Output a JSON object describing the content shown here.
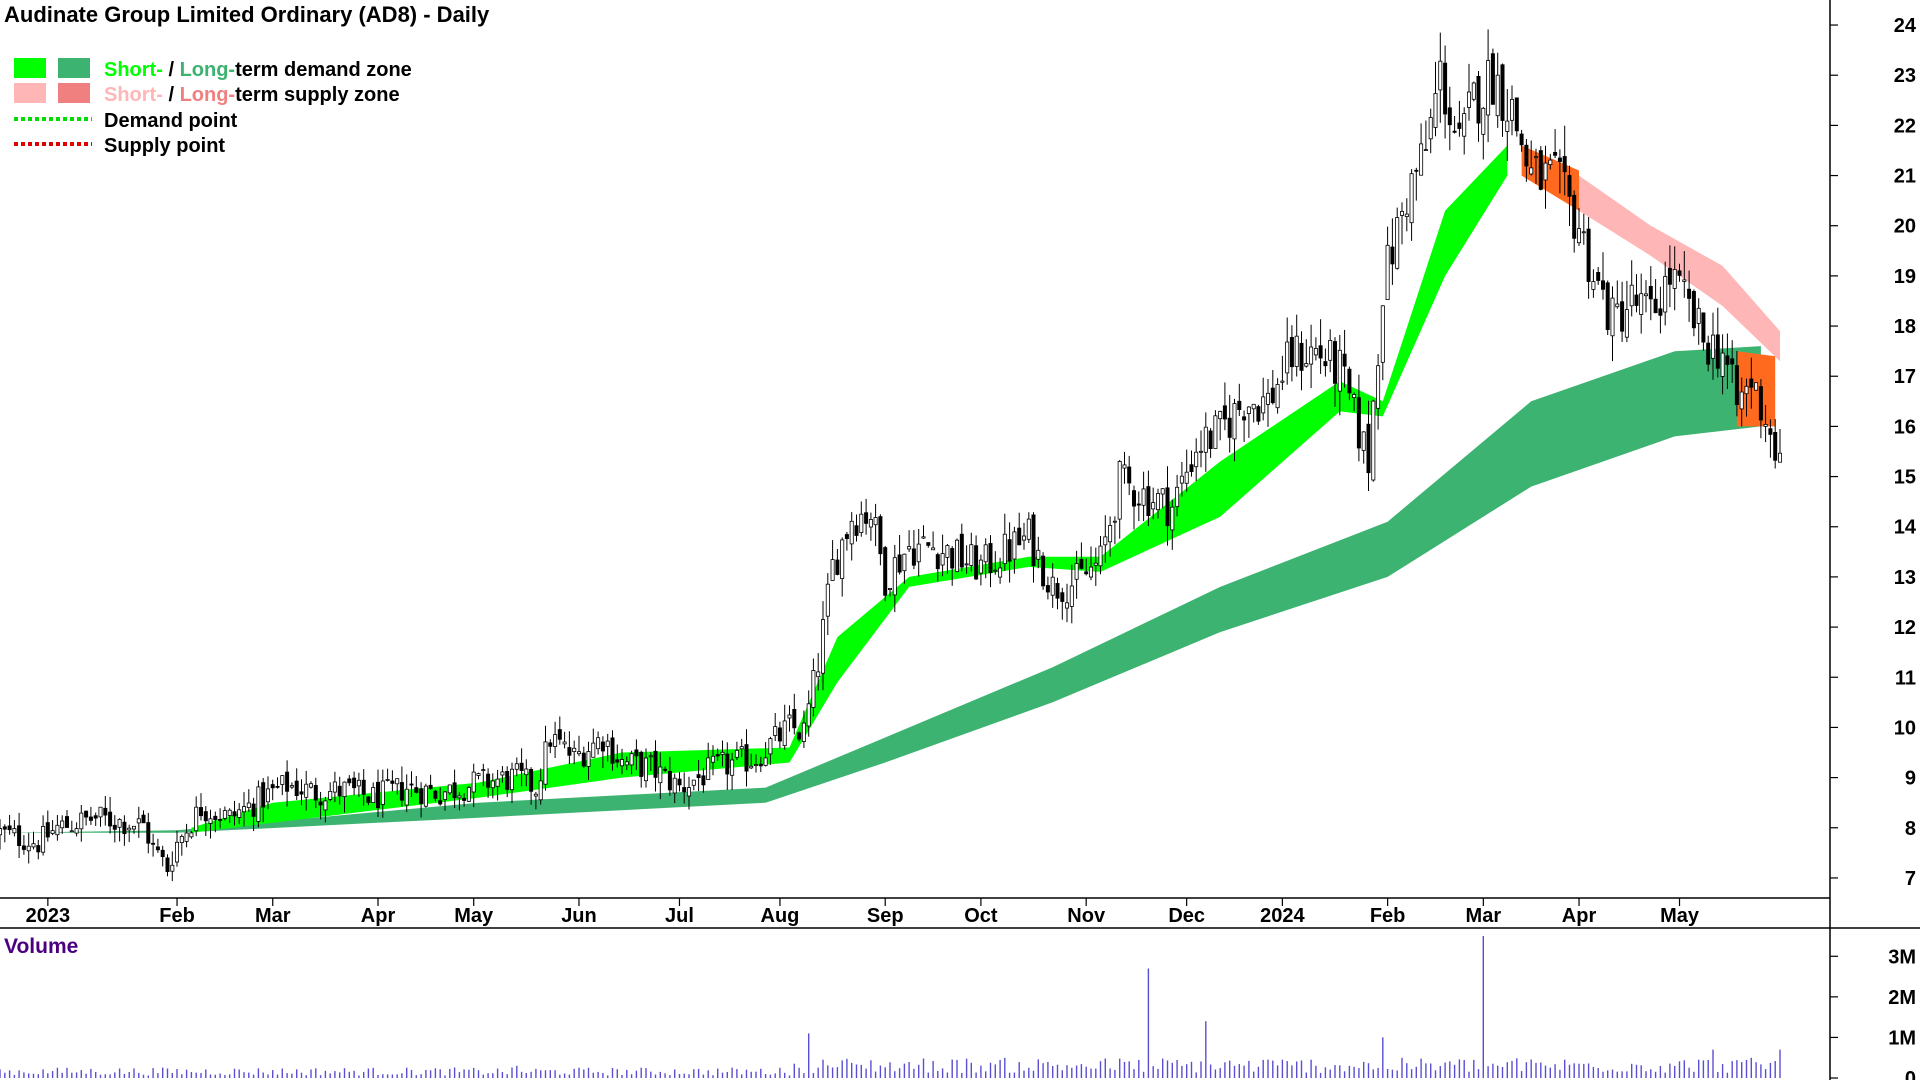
{
  "colors": {
    "short_demand": "#00ff00",
    "long_demand": "#3cb371",
    "short_supply": "#ffb6b6",
    "long_supply": "#f08080",
    "overlap": "#ff6a1f",
    "demand_point": "#00dd00",
    "supply_point": "#dd0000",
    "volume_bar": "#5a4fd1",
    "volume_title": "#4b0082"
  },
  "legend": {
    "demand_short": "Short-",
    "demand_sep": " / ",
    "demand_long": "Long-",
    "demand_rest": "term demand zone",
    "supply_short": "Short-",
    "supply_sep": " / ",
    "supply_long": "Long-",
    "supply_rest": "term supply zone",
    "demand_point": "Demand point",
    "supply_point": "Supply point"
  },
  "chart_data": {
    "type": "candlestick",
    "title": "Audinate Group Limited Ordinary (AD8) - Daily",
    "y_axis": {
      "position": "right",
      "ylim": [
        6.6,
        24.3
      ],
      "ticks": [
        7,
        8,
        9,
        10,
        11,
        12,
        13,
        14,
        15,
        16,
        17,
        18,
        19,
        20,
        21,
        22,
        23,
        24
      ]
    },
    "x_axis": {
      "xlim": [
        0,
        1460
      ],
      "labels": [
        {
          "text": "2023",
          "x": 10
        },
        {
          "text": "Feb",
          "x": 37
        },
        {
          "text": "Mar",
          "x": 57
        },
        {
          "text": "Apr",
          "x": 79
        },
        {
          "text": "May",
          "x": 99
        },
        {
          "text": "Jun",
          "x": 121
        },
        {
          "text": "Jul",
          "x": 142
        },
        {
          "text": "Aug",
          "x": 163
        },
        {
          "text": "Sep",
          "x": 185
        },
        {
          "text": "Oct",
          "x": 205
        },
        {
          "text": "Nov",
          "x": 227
        },
        {
          "text": "Dec",
          "x": 248
        },
        {
          "text": "2024",
          "x": 268
        },
        {
          "text": "Feb",
          "x": 290
        },
        {
          "text": "Mar",
          "x": 310
        },
        {
          "text": "Apr",
          "x": 330
        },
        {
          "text": "May",
          "x": 351
        }
      ]
    },
    "close_path": [
      [
        0,
        7.9
      ],
      [
        8,
        7.7
      ],
      [
        12,
        8.0
      ],
      [
        20,
        8.2
      ],
      [
        30,
        8.05
      ],
      [
        32,
        7.6
      ],
      [
        35,
        7.2
      ],
      [
        37,
        7.7
      ],
      [
        42,
        8.4
      ],
      [
        48,
        8.2
      ],
      [
        55,
        8.6
      ],
      [
        60,
        8.85
      ],
      [
        66,
        8.7
      ],
      [
        72,
        8.75
      ],
      [
        78,
        8.6
      ],
      [
        85,
        8.8
      ],
      [
        92,
        8.7
      ],
      [
        100,
        8.9
      ],
      [
        108,
        9.0
      ],
      [
        112,
        8.8
      ],
      [
        115,
        9.8
      ],
      [
        120,
        9.4
      ],
      [
        126,
        9.8
      ],
      [
        130,
        9.3
      ],
      [
        136,
        9.2
      ],
      [
        142,
        8.8
      ],
      [
        150,
        9.2
      ],
      [
        158,
        9.4
      ],
      [
        165,
        10.0
      ],
      [
        168,
        9.9
      ],
      [
        171,
        11.3
      ],
      [
        174,
        13.2
      ],
      [
        178,
        14.2
      ],
      [
        182,
        14.3
      ],
      [
        185,
        13.0
      ],
      [
        190,
        13.6
      ],
      [
        195,
        13.6
      ],
      [
        200,
        13.4
      ],
      [
        205,
        13.2
      ],
      [
        210,
        13.5
      ],
      [
        215,
        13.8
      ],
      [
        220,
        12.8
      ],
      [
        225,
        12.9
      ],
      [
        230,
        13.3
      ],
      [
        234,
        14.9
      ],
      [
        240,
        14.6
      ],
      [
        245,
        14.4
      ],
      [
        250,
        15.6
      ],
      [
        255,
        15.9
      ],
      [
        260,
        16.5
      ],
      [
        265,
        16.5
      ],
      [
        270,
        17.4
      ],
      [
        275,
        17.5
      ],
      [
        280,
        17.1
      ],
      [
        283,
        16.2
      ],
      [
        286,
        15.3
      ],
      [
        289,
        18.8
      ],
      [
        294,
        20.6
      ],
      [
        298,
        21.5
      ],
      [
        301,
        23.0
      ],
      [
        305,
        21.5
      ],
      [
        308,
        22.5
      ],
      [
        312,
        23.0
      ],
      [
        316,
        22.3
      ],
      [
        320,
        21.0
      ],
      [
        325,
        20.9
      ],
      [
        330,
        20.0
      ],
      [
        333,
        19.0
      ],
      [
        337,
        18.1
      ],
      [
        341,
        18.5
      ],
      [
        345,
        18.2
      ],
      [
        349,
        19.0
      ],
      [
        352,
        18.5
      ],
      [
        356,
        17.7
      ],
      [
        360,
        17.5
      ],
      [
        363,
        16.4
      ],
      [
        366,
        16.9
      ],
      [
        369,
        16.2
      ],
      [
        372,
        15.2
      ]
    ],
    "long_term_demand_zone": {
      "upper": [
        [
          0,
          7.9
        ],
        [
          37,
          7.95
        ],
        [
          100,
          8.5
        ],
        [
          160,
          8.8
        ],
        [
          185,
          9.8
        ],
        [
          220,
          11.2
        ],
        [
          255,
          12.8
        ],
        [
          290,
          14.1
        ],
        [
          320,
          16.5
        ],
        [
          350,
          17.5
        ],
        [
          368,
          17.6
        ]
      ],
      "lower": [
        [
          0,
          7.9
        ],
        [
          37,
          7.9
        ],
        [
          100,
          8.2
        ],
        [
          160,
          8.5
        ],
        [
          185,
          9.3
        ],
        [
          220,
          10.5
        ],
        [
          255,
          11.9
        ],
        [
          290,
          13.0
        ],
        [
          320,
          14.8
        ],
        [
          350,
          15.8
        ],
        [
          368,
          16.0
        ]
      ]
    },
    "short_term_demand_zone": {
      "upper": [
        [
          40,
          8.0
        ],
        [
          57,
          8.5
        ],
        [
          100,
          8.9
        ],
        [
          130,
          9.5
        ],
        [
          165,
          9.6
        ],
        [
          175,
          11.8
        ],
        [
          190,
          13.0
        ],
        [
          215,
          13.4
        ],
        [
          230,
          13.4
        ],
        [
          255,
          15.3
        ],
        [
          280,
          16.9
        ],
        [
          289,
          16.5
        ],
        [
          302,
          20.3
        ],
        [
          315,
          21.6
        ]
      ],
      "lower": [
        [
          40,
          7.9
        ],
        [
          57,
          8.1
        ],
        [
          100,
          8.6
        ],
        [
          130,
          9.0
        ],
        [
          165,
          9.3
        ],
        [
          175,
          10.9
        ],
        [
          190,
          12.8
        ],
        [
          215,
          13.2
        ],
        [
          230,
          13.1
        ],
        [
          255,
          14.2
        ],
        [
          280,
          16.3
        ],
        [
          289,
          16.2
        ],
        [
          302,
          19.0
        ],
        [
          315,
          21.0
        ]
      ]
    },
    "short_term_supply_zone": {
      "upper": [
        [
          318,
          21.6
        ],
        [
          330,
          21.0
        ],
        [
          345,
          20.0
        ],
        [
          360,
          19.2
        ],
        [
          372,
          17.9
        ]
      ],
      "lower": [
        [
          318,
          21.2
        ],
        [
          330,
          20.3
        ],
        [
          345,
          19.4
        ],
        [
          360,
          18.4
        ],
        [
          372,
          17.3
        ]
      ]
    },
    "volume_pane": {
      "title": "Volume",
      "ticks": [
        {
          "value": 0,
          "label": "0"
        },
        {
          "value": 1000000,
          "label": "1M"
        },
        {
          "value": 2000000,
          "label": "2M"
        },
        {
          "value": 3000000,
          "label": "3M"
        }
      ],
      "ylim": [
        0,
        3500000
      ],
      "spikes": [
        [
          108,
          300000
        ],
        [
          169,
          1100000
        ],
        [
          240,
          2700000
        ],
        [
          252,
          1400000
        ],
        [
          289,
          1000000
        ],
        [
          310,
          3500000
        ],
        [
          358,
          700000
        ],
        [
          372,
          700000
        ]
      ]
    }
  }
}
